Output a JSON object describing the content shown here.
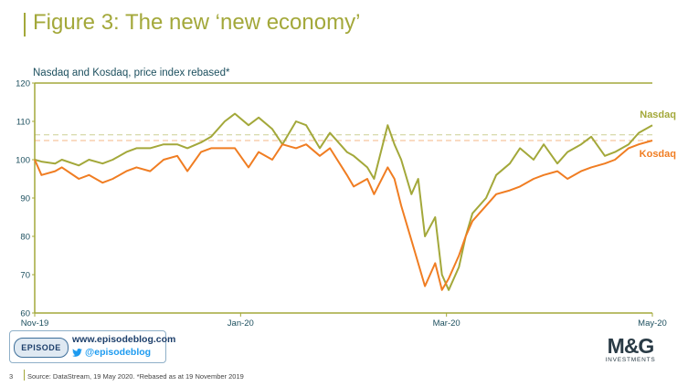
{
  "slide": {
    "title": "Figure 3: The new ‘new economy’",
    "page_number": "3",
    "source": "Source: DataStream,  19 May 2020. *Rebased as at 19 November  2019"
  },
  "branding": {
    "episode_badge": "EPISODE",
    "website": "www.episodeblog.com",
    "twitter": "@episodeblog",
    "mg_logo": "M&G",
    "mg_sub": "INVESTMENTS"
  },
  "chart_data": {
    "type": "line",
    "title": "Nasdaq and Kosdaq, price index rebased*",
    "xlabel": "",
    "ylabel": "",
    "ylim": [
      60,
      120
    ],
    "yticks": [
      60,
      70,
      80,
      90,
      100,
      110,
      120
    ],
    "x_ticks": [
      "Nov-19",
      "Jan-20",
      "Mar-20",
      "May-20"
    ],
    "x_range": [
      "2019-11-19",
      "2020-05-19"
    ],
    "grid": false,
    "reference_lines": [
      {
        "series": "Nasdaq",
        "value": 106.5,
        "style": "dashed"
      },
      {
        "series": "Kosdaq",
        "value": 105,
        "style": "dashed"
      }
    ],
    "colors": {
      "Nasdaq": "#a3a83a",
      "Kosdaq": "#f07d22",
      "axis": "#a3a83a",
      "text": "#1c4f5e"
    },
    "series": [
      {
        "name": "Nasdaq",
        "label_position": "end-above",
        "x": [
          "2019-11-19",
          "2019-11-21",
          "2019-11-25",
          "2019-11-27",
          "2019-12-02",
          "2019-12-05",
          "2019-12-09",
          "2019-12-12",
          "2019-12-16",
          "2019-12-19",
          "2019-12-23",
          "2019-12-27",
          "2019-12-31",
          "2020-01-03",
          "2020-01-07",
          "2020-01-10",
          "2020-01-14",
          "2020-01-17",
          "2020-01-21",
          "2020-01-24",
          "2020-01-28",
          "2020-01-31",
          "2020-02-04",
          "2020-02-07",
          "2020-02-11",
          "2020-02-14",
          "2020-02-19",
          "2020-02-21",
          "2020-02-25",
          "2020-02-27",
          "2020-03-02",
          "2020-03-04",
          "2020-03-06",
          "2020-03-09",
          "2020-03-11",
          "2020-03-13",
          "2020-03-16",
          "2020-03-18",
          "2020-03-20",
          "2020-03-23",
          "2020-03-25",
          "2020-03-27",
          "2020-03-31",
          "2020-04-03",
          "2020-04-07",
          "2020-04-10",
          "2020-04-14",
          "2020-04-17",
          "2020-04-21",
          "2020-04-24",
          "2020-04-28",
          "2020-05-01",
          "2020-05-05",
          "2020-05-08",
          "2020-05-12",
          "2020-05-15",
          "2020-05-19"
        ],
        "values": [
          100,
          99.5,
          99,
          100,
          98.5,
          100,
          99,
          100,
          102,
          103,
          103,
          104,
          104,
          103,
          104.5,
          106,
          110,
          112,
          109,
          111,
          108,
          104,
          110,
          109,
          103,
          107,
          102,
          101,
          98,
          95,
          109,
          104,
          100,
          91,
          95,
          80,
          85,
          70,
          66,
          72,
          80,
          86,
          90,
          96,
          99,
          103,
          100,
          104,
          99,
          102,
          104,
          106,
          101,
          102,
          104,
          107,
          109
        ]
      },
      {
        "name": "Kosdaq",
        "label_position": "end-below",
        "x": [
          "2019-11-19",
          "2019-11-21",
          "2019-11-25",
          "2019-11-27",
          "2019-12-02",
          "2019-12-05",
          "2019-12-09",
          "2019-12-12",
          "2019-12-16",
          "2019-12-19",
          "2019-12-23",
          "2019-12-27",
          "2019-12-31",
          "2020-01-03",
          "2020-01-07",
          "2020-01-10",
          "2020-01-14",
          "2020-01-17",
          "2020-01-21",
          "2020-01-24",
          "2020-01-28",
          "2020-01-31",
          "2020-02-04",
          "2020-02-07",
          "2020-02-11",
          "2020-02-14",
          "2020-02-19",
          "2020-02-21",
          "2020-02-25",
          "2020-02-27",
          "2020-03-02",
          "2020-03-04",
          "2020-03-06",
          "2020-03-09",
          "2020-03-11",
          "2020-03-13",
          "2020-03-16",
          "2020-03-18",
          "2020-03-20",
          "2020-03-23",
          "2020-03-25",
          "2020-03-27",
          "2020-03-31",
          "2020-04-03",
          "2020-04-07",
          "2020-04-10",
          "2020-04-14",
          "2020-04-17",
          "2020-04-21",
          "2020-04-24",
          "2020-04-28",
          "2020-05-01",
          "2020-05-05",
          "2020-05-08",
          "2020-05-12",
          "2020-05-15",
          "2020-05-19"
        ],
        "values": [
          100,
          96,
          97,
          98,
          95,
          96,
          94,
          95,
          97,
          98,
          97,
          100,
          101,
          97,
          102,
          103,
          103,
          103,
          98,
          102,
          100,
          104,
          103,
          104,
          101,
          103,
          96,
          93,
          95,
          91,
          98,
          95,
          88,
          79,
          73,
          67,
          73,
          66,
          69,
          75,
          80,
          84,
          88,
          91,
          92,
          93,
          95,
          96,
          97,
          95,
          97,
          98,
          99,
          100,
          103,
          104,
          105
        ]
      }
    ]
  }
}
